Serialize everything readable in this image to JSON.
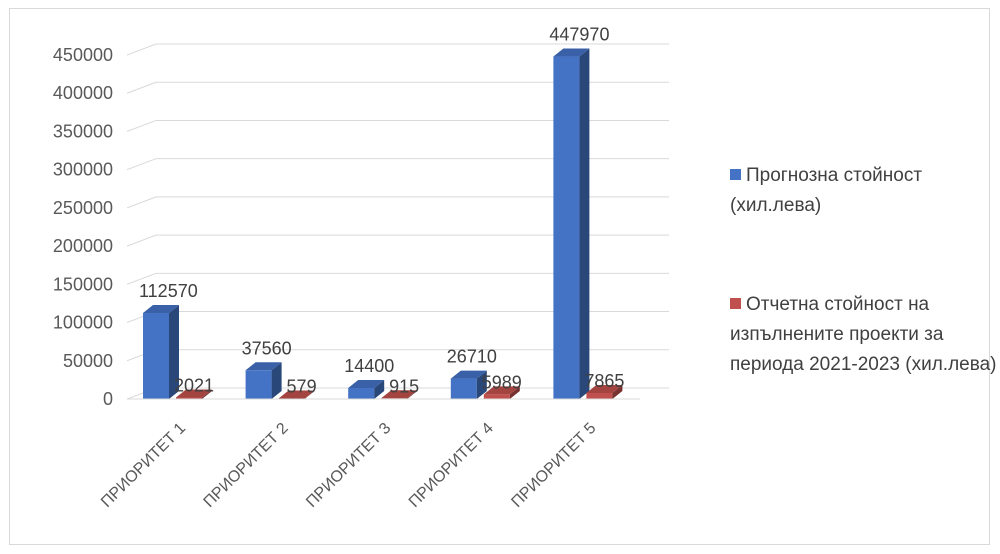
{
  "chart_data": {
    "type": "bar",
    "title": "",
    "xlabel": "",
    "ylabel": "",
    "categories": [
      "ПРИОРИТЕТ 1",
      "ПРИОРИТЕТ 2",
      "ПРИОРИТЕТ 3",
      "ПРИОРИТЕТ 4",
      "ПРИОРИТЕТ 5"
    ],
    "ylim": [
      0,
      450000
    ],
    "yticks": [
      0,
      50000,
      100000,
      150000,
      200000,
      250000,
      300000,
      350000,
      400000,
      450000
    ],
    "grid": true,
    "style": "3d-clustered-column",
    "legend_position": "right",
    "series": [
      {
        "name": "Прогнозна стойност (хил.лева)",
        "color": "#4472c4",
        "values": [
          112570,
          37560,
          14400,
          26710,
          447970
        ],
        "labels": [
          "112570",
          "37560",
          "14400",
          "26710",
          "447970"
        ]
      },
      {
        "name": "Отчетна стойност на изпълнените проекти за периода 2021-2023 (хил.лева)",
        "color": "#c0504d",
        "values": [
          2021,
          579,
          915,
          5989,
          7865
        ],
        "labels": [
          "2021",
          "579",
          "915",
          "5989",
          "7865"
        ]
      }
    ]
  },
  "legend": {
    "series_1_label": "Прогнозна стойност (хил.лева)",
    "series_2_label": "Отчетна стойност на изпълнените проекти за периода 2021-2023 (хил.лева)"
  }
}
